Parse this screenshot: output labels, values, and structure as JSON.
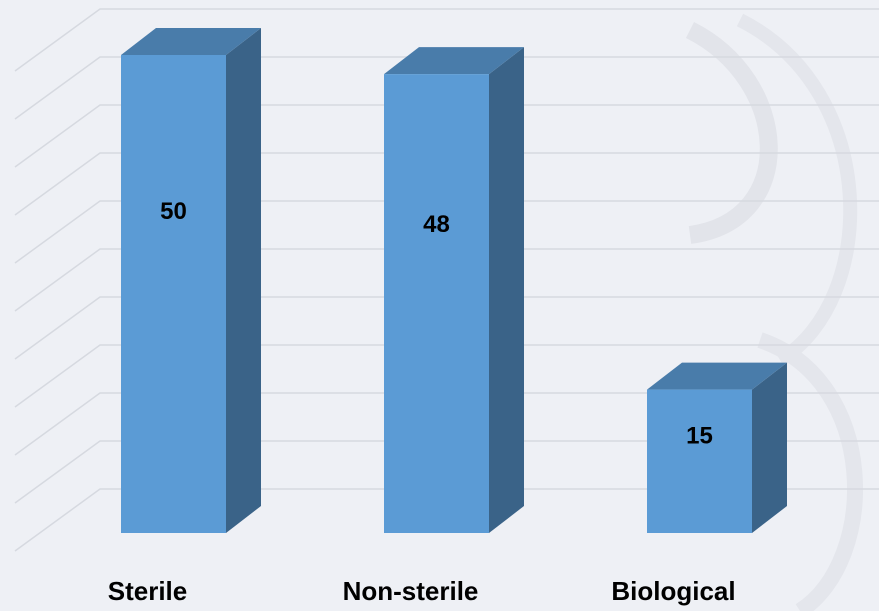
{
  "chart_data": {
    "type": "bar3d",
    "categories": [
      "Sterile",
      "Non-sterile",
      "Biological"
    ],
    "values": [
      50,
      48,
      15
    ],
    "color": "#5b9bd5",
    "ylim": [
      0,
      50
    ],
    "yticks": [
      0,
      5,
      10,
      15,
      20,
      25,
      30,
      35,
      40,
      45,
      50
    ],
    "grid": true
  }
}
